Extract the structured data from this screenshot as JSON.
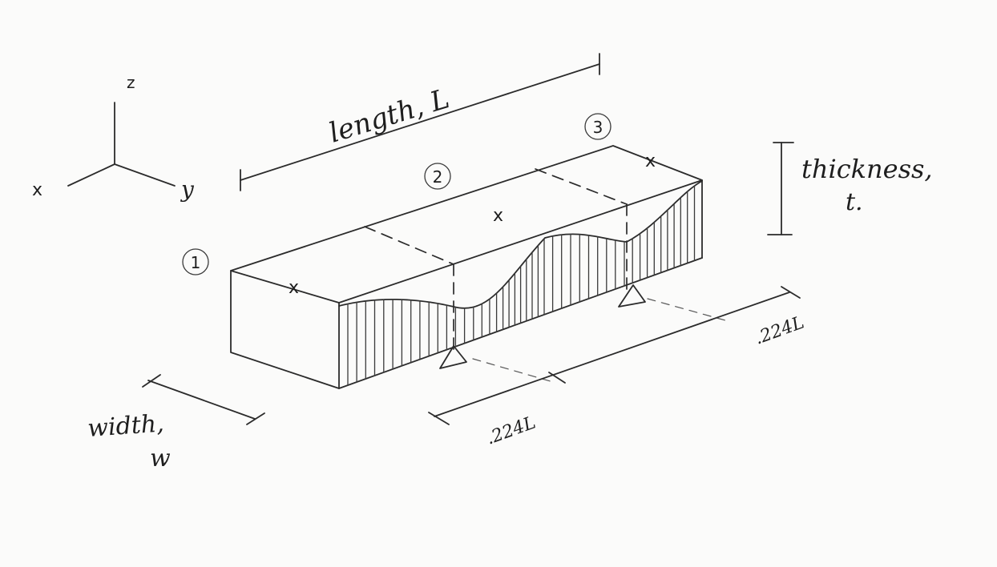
{
  "axes": {
    "x": "x",
    "y": "y",
    "z": "z"
  },
  "labels": {
    "length": "length, L",
    "thickness_line1": "thickness,",
    "thickness_line2": "t.",
    "width_line1": "width,",
    "width_line2": "w",
    "support_front": ".224L",
    "support_back": ".224L"
  },
  "nodes": [
    "1",
    "2",
    "3"
  ],
  "cross_mark": "x"
}
